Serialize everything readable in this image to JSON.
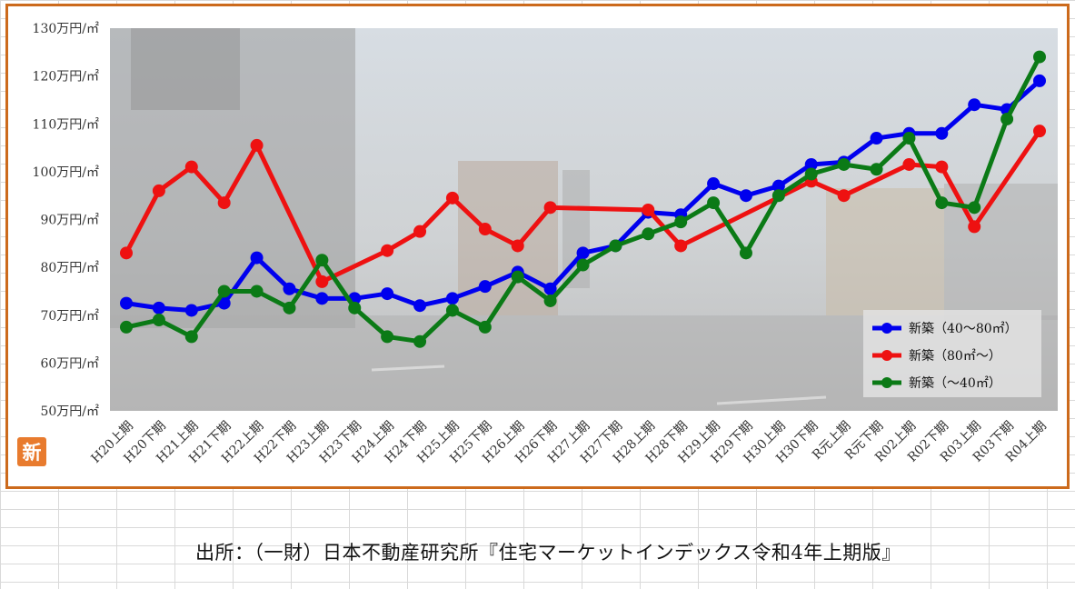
{
  "chart_data": {
    "type": "line",
    "title": "",
    "ylabel": "",
    "xlabel": "",
    "ylim": [
      50,
      130
    ],
    "yticks": [
      "50万円/㎡",
      "60万円/㎡",
      "70万円/㎡",
      "80万円/㎡",
      "90万円/㎡",
      "100万円/㎡",
      "110万円/㎡",
      "120万円/㎡",
      "130万円/㎡"
    ],
    "ytick_values": [
      50,
      60,
      70,
      80,
      90,
      100,
      110,
      120,
      130
    ],
    "grid": false,
    "legend_position": "bottom-right",
    "categories": [
      "H20上期",
      "H20下期",
      "H21上期",
      "H21下期",
      "H22上期",
      "H22下期",
      "H23上期",
      "H23下期",
      "H24上期",
      "H24下期",
      "H25上期",
      "H25下期",
      "H26上期",
      "H26下期",
      "H27上期",
      "H27下期",
      "H28上期",
      "H28下期",
      "H29上期",
      "H29下期",
      "H30上期",
      "H30下期",
      "R元上期",
      "R元下期",
      "R02上期",
      "R02下期",
      "R03上期",
      "R03下期",
      "R04上期"
    ],
    "series": [
      {
        "name": "新築（40～80㎡）",
        "color": "#0000ee",
        "values": [
          72.5,
          71.5,
          71,
          72.5,
          82,
          75.5,
          73.5,
          73.5,
          74.5,
          72,
          73.5,
          76,
          79,
          75.5,
          83,
          84.5,
          91.5,
          91,
          97.5,
          95,
          97,
          101.5,
          102,
          107,
          108,
          108,
          114,
          113,
          119
        ]
      },
      {
        "name": "新築（80㎡～）",
        "color": "#ee1111",
        "values": [
          83,
          96,
          101,
          93.5,
          105.5,
          null,
          77,
          null,
          83.5,
          87.5,
          94.5,
          88,
          84.5,
          92.5,
          null,
          null,
          92,
          84.5,
          null,
          null,
          null,
          98,
          95,
          null,
          101.5,
          101,
          88.5,
          null,
          108.5
        ]
      },
      {
        "name": "新築（～40㎡）",
        "color": "#0b7a16",
        "values": [
          67.5,
          69,
          65.5,
          75,
          75,
          71.5,
          81.5,
          71.5,
          65.5,
          64.5,
          71,
          67.5,
          78,
          73,
          80.5,
          84.5,
          87,
          89.5,
          93.5,
          83,
          95,
          99.5,
          101.5,
          100.5,
          107,
          93.5,
          92.5,
          111,
          124
        ]
      }
    ]
  },
  "badge": {
    "label": "新",
    "color": "#e87b2e"
  },
  "source": {
    "text": "出所：（一財）日本不動産研究所『住宅マーケットインデックス令和4年上期版』"
  },
  "colors": {
    "frame": "#cc6a1c",
    "plot_background": "#c9c9c9"
  }
}
